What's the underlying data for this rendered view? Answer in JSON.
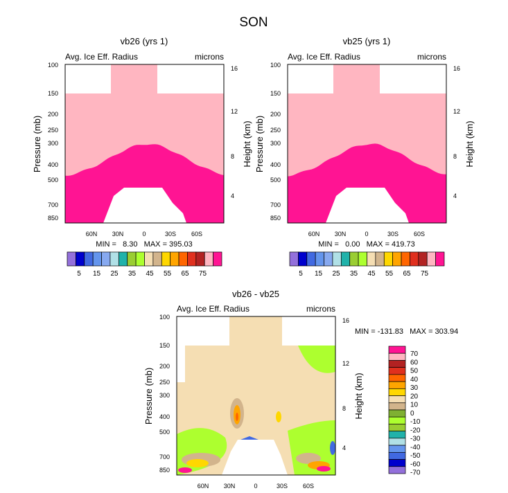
{
  "figure_title": "SON",
  "colors": {
    "abs_levels": [
      "#9370DB",
      "#0000CD",
      "#4169E1",
      "#6495ED",
      "#87A9F0",
      "#B0E0E6",
      "#20B2AA",
      "#9ACD32",
      "#ADFF2F",
      "#F5DEB3",
      "#D2B48C",
      "#FFD700",
      "#FFA500",
      "#FF6600",
      "#E0301E",
      "#B22222",
      "#FFB6C1",
      "#FF1493"
    ],
    "diff_levels": [
      "#9370DB",
      "#0000CD",
      "#4169E1",
      "#6495ED",
      "#B0E0E6",
      "#20B2AA",
      "#9ACD32",
      "#ADFF2F",
      "#7FB032",
      "#D2B48C",
      "#F5DEB3",
      "#FFD700",
      "#FFA500",
      "#FF6600",
      "#E0301E",
      "#B22222",
      "#FFB6C1",
      "#FF1493"
    ]
  },
  "chart_data": [
    {
      "type": "heatmap",
      "id": "vb26",
      "title": "vb26 (yrs 1)",
      "left_label": "Avg. Ice Eff. Radius",
      "right_label": "microns",
      "ylabel": "Pressure (mb)",
      "ylabel_right": "Height (km)",
      "y_ticks": [
        "100",
        "150",
        "200",
        "250",
        "300",
        "400",
        "500",
        "700",
        "850"
      ],
      "y_ticks_right": [
        "16",
        "12",
        "8",
        "4"
      ],
      "x_ticks": [
        "60N",
        "30N",
        "0",
        "30S",
        "60S"
      ],
      "stats": "MIN =   8.30   MAX = 395.03",
      "colorbar_labels": [
        "5",
        "15",
        "25",
        "35",
        "45",
        "55",
        "65",
        "75"
      ]
    },
    {
      "type": "heatmap",
      "id": "vb25",
      "title": "vb25 (yrs 1)",
      "left_label": "Avg. Ice Eff. Radius",
      "right_label": "microns",
      "ylabel": "Pressure (mb)",
      "ylabel_right": "Height (km)",
      "y_ticks": [
        "100",
        "150",
        "200",
        "250",
        "300",
        "400",
        "500",
        "700",
        "850"
      ],
      "y_ticks_right": [
        "16",
        "12",
        "8",
        "4"
      ],
      "x_ticks": [
        "60N",
        "30N",
        "0",
        "30S",
        "60S"
      ],
      "stats": "MIN =   0.00   MAX = 419.73",
      "colorbar_labels": [
        "5",
        "15",
        "25",
        "35",
        "45",
        "55",
        "65",
        "75"
      ]
    },
    {
      "type": "heatmap",
      "id": "diff",
      "title": "vb26 - vb25",
      "left_label": "Avg. Ice Eff. Radius",
      "right_label": "microns",
      "ylabel": "Pressure (mb)",
      "ylabel_right": "Height (km)",
      "y_ticks": [
        "100",
        "150",
        "200",
        "250",
        "300",
        "400",
        "500",
        "700",
        "850"
      ],
      "y_ticks_right": [
        "16",
        "12",
        "8",
        "4"
      ],
      "x_ticks": [
        "60N",
        "30N",
        "0",
        "30S",
        "60S"
      ],
      "stats": "MIN = -131.83   MAX = 303.94",
      "colorbar_labels": [
        "70",
        "60",
        "50",
        "40",
        "30",
        "20",
        "10",
        "0",
        "-10",
        "-20",
        "-30",
        "-40",
        "-50",
        "-60",
        "-70"
      ]
    }
  ]
}
